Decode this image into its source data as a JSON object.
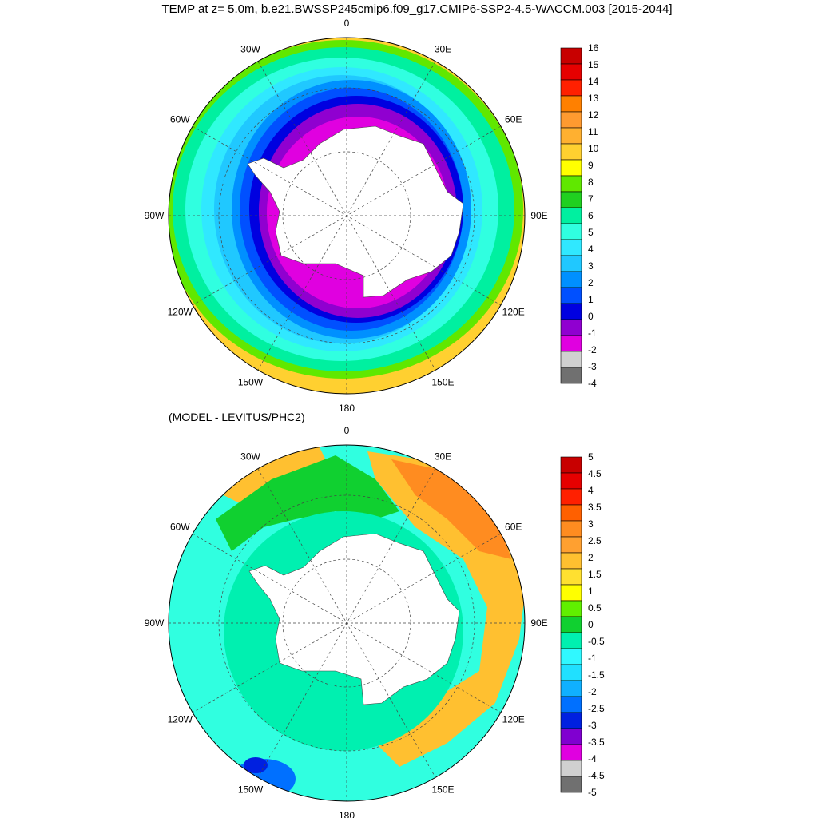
{
  "title": "TEMP at z=   5.0m, b.e21.BWSSP245cmip6.f09_g17.CMIP6-SSP2-4.5-WACCM.003 [2015-2044]",
  "subtitle": "(MODEL - LEVITUS/PHC2)",
  "lon_labels": [
    "0",
    "30E",
    "60E",
    "90E",
    "120E",
    "150E",
    "180",
    "150W",
    "120W",
    "90W",
    "60W",
    "30W"
  ],
  "top_map": {
    "colorbar_ticks": [
      "16",
      "15",
      "14",
      "13",
      "12",
      "11",
      "10",
      "9",
      "8",
      "7",
      "6",
      "5",
      "4",
      "3",
      "2",
      "1",
      "0",
      "-1",
      "-2",
      "-3",
      "-4"
    ],
    "colors": [
      "#c80000",
      "#e60000",
      "#ff2000",
      "#ff8000",
      "#ff9a30",
      "#ffb030",
      "#ffd030",
      "#ffff00",
      "#60e800",
      "#20d020",
      "#00f0a0",
      "#30ffe0",
      "#30e8ff",
      "#20c8ff",
      "#0090ff",
      "#0050ff",
      "#0000e0",
      "#9000d0",
      "#e000e0",
      "#d0d0d0",
      "#707070"
    ]
  },
  "bottom_map": {
    "colorbar_ticks": [
      "5",
      "4.5",
      "4",
      "3.5",
      "3",
      "2.5",
      "2",
      "1.5",
      "1",
      "0.5",
      "0",
      "-0.5",
      "-1",
      "-1.5",
      "-2",
      "-2.5",
      "-3",
      "-3.5",
      "-4",
      "-4.5",
      "-5"
    ],
    "colors": [
      "#c80000",
      "#e60000",
      "#ff2000",
      "#ff6000",
      "#ff8c20",
      "#ffa030",
      "#ffc030",
      "#ffe030",
      "#ffff00",
      "#60f000",
      "#10d030",
      "#00f0b0",
      "#30f8ff",
      "#20e0ff",
      "#10b0ff",
      "#0070ff",
      "#0020e0",
      "#8000d0",
      "#e000e0",
      "#d0d0d0",
      "#707070"
    ]
  }
}
